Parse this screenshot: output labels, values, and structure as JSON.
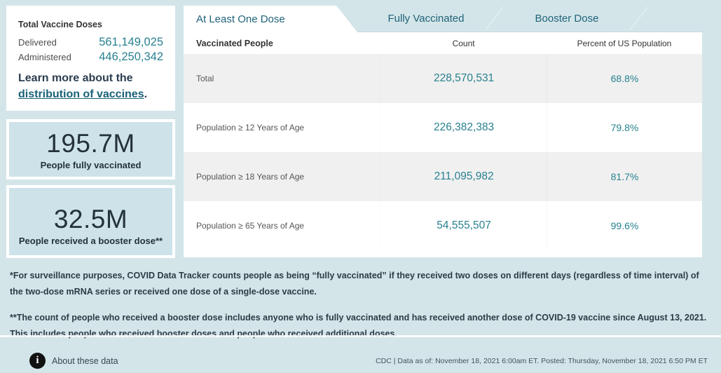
{
  "colors": {
    "page_background": "#d3e5e9",
    "accent_teal": "#27808f",
    "link_teal": "#1a6178",
    "row_stripe": "#f0f0f0",
    "info_icon": "#111111"
  },
  "sidebar": {
    "doses_card": {
      "title": "Total Vaccine Doses",
      "delivered_label": "Delivered",
      "delivered_value": "561,149,025",
      "administered_label": "Administered",
      "administered_value": "446,250,342",
      "learn_more_prefix": "Learn more about the ",
      "learn_more_link": "distribution of vaccines",
      "learn_more_suffix": "."
    },
    "stat_cards": [
      {
        "value": "195.7M",
        "label": "People fully vaccinated"
      },
      {
        "value": "32.5M",
        "label": "People received a booster dose**"
      }
    ]
  },
  "tabs": [
    {
      "label": "At Least One Dose",
      "active": true
    },
    {
      "label": "Fully Vaccinated",
      "active": false
    },
    {
      "label": "Booster Dose",
      "active": false
    }
  ],
  "table": {
    "columns": [
      "Vaccinated People",
      "Count",
      "Percent of US Population"
    ],
    "rows": [
      {
        "label": "Total",
        "count": "228,570,531",
        "percent": "68.8%"
      },
      {
        "label": "Population ≥ 12 Years of Age",
        "count": "226,382,383",
        "percent": "79.8%"
      },
      {
        "label": "Population ≥ 18 Years of Age",
        "count": "211,095,982",
        "percent": "81.7%"
      },
      {
        "label": "Population ≥ 65 Years of Age",
        "count": "54,555,507",
        "percent": "99.6%"
      }
    ]
  },
  "footnotes": [
    "*For surveillance purposes, COVID Data Tracker counts people as being “fully vaccinated” if they received two doses on different days (regardless of time interval) of the two-dose mRNA series or received one dose of a single-dose vaccine.",
    "**The count of people who received a booster dose includes anyone who is fully vaccinated and has received another dose of COVID-19 vaccine since August 13, 2021. This includes people who received booster doses and people who received additional doses."
  ],
  "footer": {
    "about_label": "About these data",
    "info_icon": "info-icon",
    "source_line": "CDC | Data as of: November 18, 2021 6:00am ET. Posted: Thursday, November 18, 2021 6:50 PM ET"
  }
}
